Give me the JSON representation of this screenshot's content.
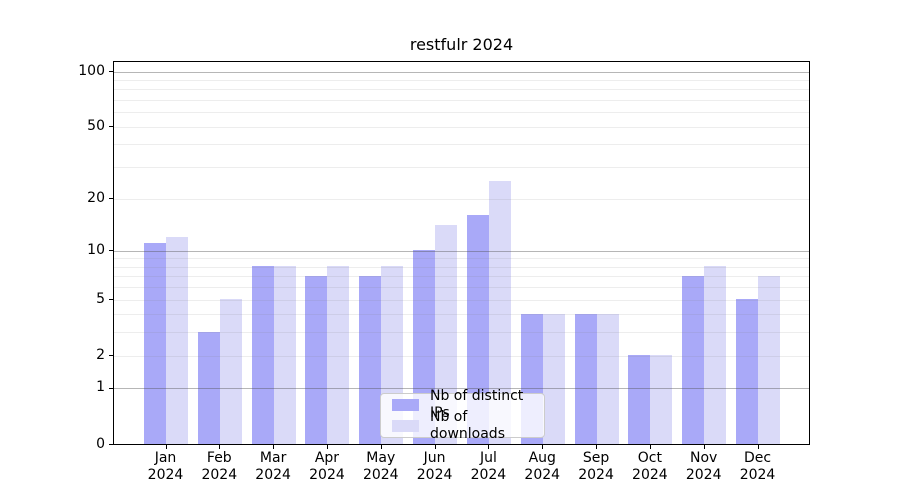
{
  "chart": {
    "title": "restfulr 2024",
    "y_axis": {
      "tick_labels": [
        "0",
        "1",
        "2",
        "5",
        "10",
        "20",
        "50",
        "100"
      ]
    },
    "x_axis": {
      "months": [
        "Jan",
        "Feb",
        "Mar",
        "Apr",
        "May",
        "Jun",
        "Jul",
        "Aug",
        "Sep",
        "Oct",
        "Nov",
        "Dec"
      ],
      "year": "2024"
    },
    "legend": {
      "items": [
        {
          "label": "Nb of distinct IPs",
          "color": "#a9a9f8"
        },
        {
          "label": "Nb of downloads",
          "color": "#dadaf8"
        }
      ]
    }
  },
  "chart_data": {
    "type": "bar",
    "title": "restfulr 2024",
    "categories": [
      "Jan 2024",
      "Feb 2024",
      "Mar 2024",
      "Apr 2024",
      "May 2024",
      "Jun 2024",
      "Jul 2024",
      "Aug 2024",
      "Sep 2024",
      "Oct 2024",
      "Nov 2024",
      "Dec 2024"
    ],
    "series": [
      {
        "name": "Nb of distinct IPs",
        "color": "#a9a9f8",
        "values": [
          11,
          3,
          8,
          7,
          7,
          10,
          16,
          4,
          4,
          2,
          7,
          5
        ]
      },
      {
        "name": "Nb of downloads",
        "color": "#dadaf8",
        "values": [
          12,
          5,
          8,
          8,
          8,
          14,
          25,
          4,
          4,
          2,
          8,
          7
        ]
      }
    ],
    "yscale": "log1p",
    "ylim": [
      0,
      113
    ],
    "y_ticks": [
      0,
      1,
      2,
      5,
      10,
      20,
      50,
      100
    ],
    "y_major_gridlines": [
      1,
      10,
      100
    ],
    "y_minor_gridlines": [
      2,
      3,
      4,
      5,
      6,
      7,
      8,
      9,
      20,
      30,
      40,
      50,
      60,
      70,
      80,
      90
    ],
    "grid": true,
    "legend_position": "inside lower center"
  }
}
